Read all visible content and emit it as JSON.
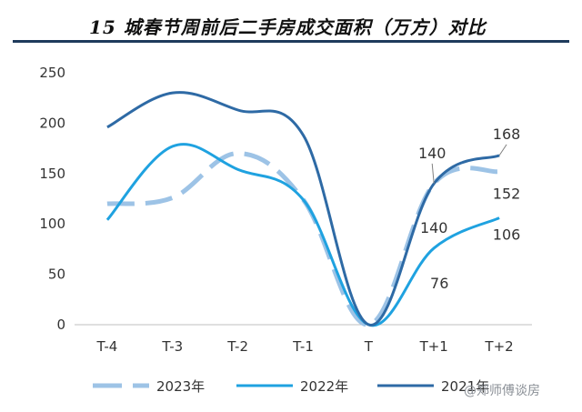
{
  "chart_data": {
    "type": "line",
    "title": "15 城春节周前后二手房成交面积（万方）对比",
    "categories": [
      "T-4",
      "T-3",
      "T-2",
      "T-1",
      "T",
      "T+1",
      "T+2"
    ],
    "ylim": [
      0,
      250
    ],
    "yticks": [
      0,
      50,
      100,
      150,
      200,
      250
    ],
    "grid": false,
    "legend_position": "bottom",
    "series": [
      {
        "name": "2023年",
        "color": "#9dc3e6",
        "style": "dashed",
        "values": [
          120,
          126,
          170,
          124,
          0,
          140,
          152
        ]
      },
      {
        "name": "2022年",
        "color": "#1fa2e0",
        "style": "solid",
        "values": [
          104,
          177,
          154,
          124,
          0,
          76,
          106
        ]
      },
      {
        "name": "2021年",
        "color": "#2e6aa5",
        "style": "solid",
        "values": [
          196,
          230,
          213,
          188,
          0,
          140,
          168
        ]
      }
    ],
    "data_labels": [
      {
        "series": 2,
        "index": 5,
        "text": "140"
      },
      {
        "series": 0,
        "index": 5,
        "text": "140"
      },
      {
        "series": 1,
        "index": 5,
        "text": "76"
      },
      {
        "series": 2,
        "index": 6,
        "text": "168"
      },
      {
        "series": 0,
        "index": 6,
        "text": "152"
      },
      {
        "series": 1,
        "index": 6,
        "text": "106"
      }
    ]
  },
  "watermark": "@郑师傅谈房"
}
